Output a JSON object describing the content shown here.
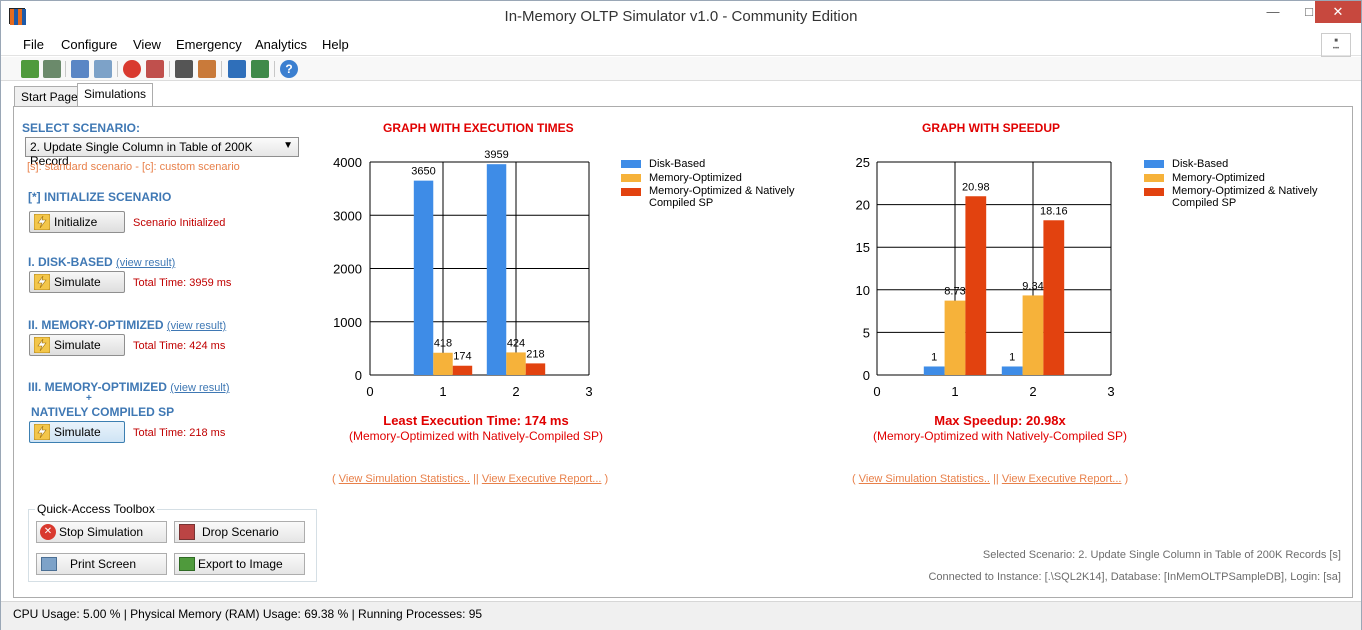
{
  "window": {
    "title": "In-Memory OLTP Simulator v1.0 - Community Edition"
  },
  "menu": [
    "File",
    "Configure",
    "View",
    "Emergency",
    "Analytics",
    "Help"
  ],
  "toolbar_icons": [
    "add-icon",
    "add-server-icon",
    "window-icon",
    "settings-icon",
    "stop-icon",
    "drop-icon",
    "grid-icon",
    "image-icon",
    "bar-chart-icon",
    "report-icon",
    "help-icon"
  ],
  "tabs": [
    {
      "label": "Start Page"
    },
    {
      "label": "Simulations"
    }
  ],
  "scenario": {
    "heading": "SELECT SCENARIO:",
    "selected": "2. Update Single Column in Table of 200K Record",
    "legend_note": "[s]: standard scenario  -  [c]: custom scenario"
  },
  "init": {
    "heading": "[*] INITIALIZE SCENARIO",
    "button": "Initialize",
    "status": "Scenario Initialized"
  },
  "disk": {
    "heading": "I. DISK-BASED",
    "link": "(view result)",
    "button": "Simulate",
    "status": "Total Time: 3959 ms"
  },
  "mem": {
    "heading": "II. MEMORY-OPTIMIZED",
    "link": "(view result)",
    "button": "Simulate",
    "status": "Total Time: 424 ms"
  },
  "native": {
    "heading": "III. MEMORY-OPTIMIZED",
    "link": "(view result)",
    "plus": "+",
    "heading2": "NATIVELY COMPILED SP",
    "button": "Simulate",
    "status": "Total Time: 218 ms"
  },
  "toolbox": {
    "title": "Quick-Access Toolbox",
    "stop": "Stop Simulation",
    "drop": "Drop Scenario",
    "print": "Print Screen",
    "export": "Export to Image"
  },
  "legend": {
    "disk": "Disk-Based",
    "mem": "Memory-Optimized",
    "native_1": "Memory-Optimized & Natively",
    "native_2": "Compiled SP"
  },
  "chart1": {
    "title": "GRAPH WITH EXECUTION TIMES",
    "result_title": "Least Execution Time: 174 ms",
    "result_sub": "(Memory-Optimized with Natively-Compiled SP)"
  },
  "chart2": {
    "title": "GRAPH WITH SPEEDUP",
    "result_title": "Max Speedup: 20.98x",
    "result_sub": "(Memory-Optimized with Natively-Compiled SP)"
  },
  "links": {
    "open": "(",
    "stats": "View Simulation Statistics..",
    "sep": "||",
    "report": "View Executive Report...",
    "close": ")"
  },
  "info": {
    "selected": "Selected Scenario: 2. Update Single Column in Table of 200K Records [s]",
    "connection": "Connected to Instance: [.\\SQL2K14], Database: [InMemOLTPSampleDB], Login: [sa]"
  },
  "status": "CPU Usage: 5.00 % | Physical Memory (RAM) Usage: 69.38 % | Running Processes: 95",
  "colors": {
    "disk": "#3e8ce7",
    "mem": "#f6b23a",
    "native": "#e2420f",
    "accent": "#3f78b4",
    "alert": "#e00000"
  },
  "chart_data": [
    {
      "type": "bar",
      "title": "GRAPH WITH EXECUTION TIMES",
      "x_ticks": [
        "0",
        "1",
        "2",
        "3"
      ],
      "y_ticks": [
        "0",
        "1000",
        "2000",
        "3000",
        "4000"
      ],
      "xlim": [
        0,
        3
      ],
      "ylim": [
        0,
        4000
      ],
      "grid": true,
      "legend": "right",
      "x": [
        1,
        2
      ],
      "series": [
        {
          "name": "Disk-Based",
          "color": "#3e8ce7",
          "values": [
            3650,
            3959
          ],
          "labels": [
            "3650",
            "3959"
          ]
        },
        {
          "name": "Memory-Optimized",
          "color": "#f6b23a",
          "values": [
            418,
            424
          ],
          "labels": [
            "418",
            "424"
          ]
        },
        {
          "name": "Memory-Optimized & Natively Compiled SP",
          "color": "#e2420f",
          "values": [
            174,
            218
          ],
          "labels": [
            "174",
            "218"
          ]
        }
      ]
    },
    {
      "type": "bar",
      "title": "GRAPH WITH SPEEDUP",
      "x_ticks": [
        "0",
        "1",
        "2",
        "3"
      ],
      "y_ticks": [
        "0",
        "5",
        "10",
        "15",
        "20",
        "25"
      ],
      "xlim": [
        0,
        3
      ],
      "ylim": [
        0,
        25
      ],
      "grid": true,
      "legend": "right",
      "x": [
        1,
        2
      ],
      "series": [
        {
          "name": "Disk-Based",
          "color": "#3e8ce7",
          "values": [
            1,
            1
          ],
          "labels": [
            "1",
            "1"
          ]
        },
        {
          "name": "Memory-Optimized",
          "color": "#f6b23a",
          "values": [
            8.73,
            9.34
          ],
          "labels": [
            "8.73",
            "9.34"
          ]
        },
        {
          "name": "Memory-Optimized & Natively Compiled SP",
          "color": "#e2420f",
          "values": [
            20.98,
            18.16
          ],
          "labels": [
            "20.98",
            "18.16"
          ]
        }
      ]
    }
  ]
}
